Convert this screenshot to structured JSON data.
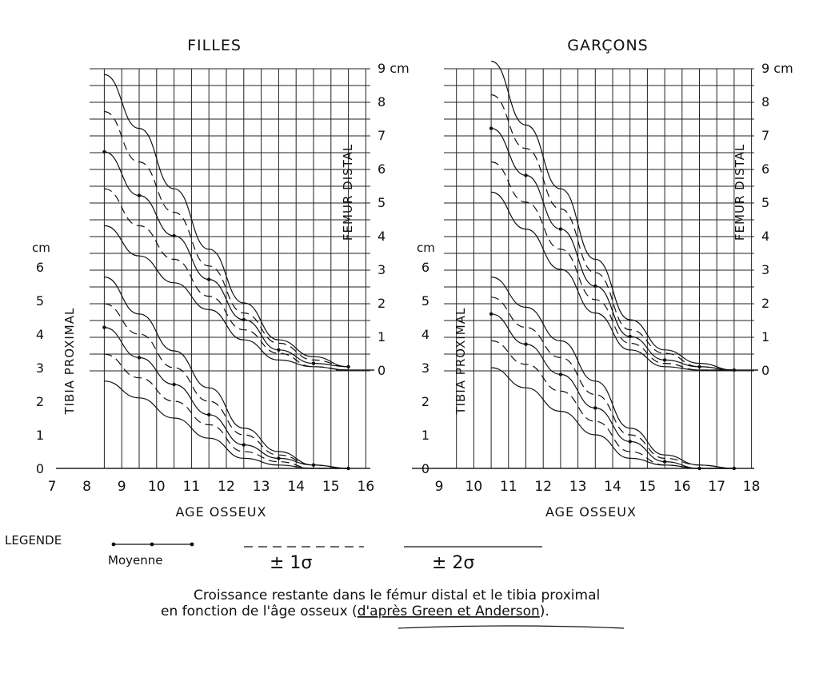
{
  "chart_data": [
    {
      "type": "line",
      "title": "FILLES",
      "xlabel": "AGE OSSEUX",
      "x_ticks": [
        "7",
        "8",
        "9",
        "10",
        "11",
        "12",
        "13",
        "14",
        "15",
        "16"
      ],
      "xlim": [
        7,
        16
      ],
      "femur_axis": {
        "label": "FEMUR DISTAL",
        "unit": "cm",
        "ticks": [
          "0",
          "1",
          "2",
          "3",
          "4",
          "5",
          "6",
          "7",
          "8",
          "9 cm"
        ],
        "ylim": [
          0,
          9
        ]
      },
      "tibia_axis": {
        "label": "TIBIA PROXIMAL",
        "unit": "cm",
        "ticks": [
          "0",
          "1",
          "2",
          "3",
          "4",
          "5",
          "6"
        ],
        "ylim": [
          0,
          6
        ]
      },
      "femur_series": [
        {
          "style": "2sigma",
          "x": [
            8.5,
            9.5,
            10.5,
            11.5,
            12.5,
            13.5,
            14.5,
            15.5
          ],
          "y": [
            8.8,
            7.2,
            5.4,
            3.6,
            2.0,
            0.9,
            0.4,
            0.1
          ]
        },
        {
          "style": "1sigma",
          "x": [
            8.5,
            9.5,
            10.5,
            11.5,
            12.5,
            13.5,
            14.5,
            15.5
          ],
          "y": [
            7.7,
            6.2,
            4.7,
            3.1,
            1.7,
            0.8,
            0.3,
            0.1
          ]
        },
        {
          "style": "mean",
          "x": [
            8.5,
            9.5,
            10.5,
            11.5,
            12.5,
            13.5,
            14.5,
            15.5
          ],
          "y": [
            6.5,
            5.2,
            4.0,
            2.7,
            1.5,
            0.6,
            0.2,
            0.1
          ]
        },
        {
          "style": "1sigma",
          "x": [
            8.5,
            9.5,
            10.5,
            11.5,
            12.5,
            13.5,
            14.5,
            15.5
          ],
          "y": [
            5.4,
            4.3,
            3.3,
            2.2,
            1.2,
            0.5,
            0.1,
            0.0
          ]
        },
        {
          "style": "2sigma",
          "x": [
            8.5,
            9.5,
            10.5,
            11.5,
            12.5,
            13.5,
            14.5,
            15.5
          ],
          "y": [
            4.3,
            3.4,
            2.6,
            1.8,
            0.9,
            0.3,
            0.1,
            0.0
          ]
        }
      ],
      "tibia_series": [
        {
          "style": "2sigma",
          "x": [
            8.5,
            9.5,
            10.5,
            11.5,
            12.5,
            13.5,
            14.5,
            15.5
          ],
          "y": [
            5.7,
            4.6,
            3.5,
            2.4,
            1.2,
            0.5,
            0.1,
            0.0
          ]
        },
        {
          "style": "1sigma",
          "x": [
            8.5,
            9.5,
            10.5,
            11.5,
            12.5,
            13.5,
            14.5,
            15.5
          ],
          "y": [
            4.9,
            4.0,
            3.0,
            2.0,
            1.0,
            0.4,
            0.1,
            0.0
          ]
        },
        {
          "style": "mean",
          "x": [
            8.5,
            9.5,
            10.5,
            11.5,
            12.5,
            13.5,
            14.5,
            15.5
          ],
          "y": [
            4.2,
            3.3,
            2.5,
            1.6,
            0.7,
            0.3,
            0.1,
            0.0
          ]
        },
        {
          "style": "1sigma",
          "x": [
            8.5,
            9.5,
            10.5,
            11.5,
            12.5,
            13.5,
            14.5,
            15.5
          ],
          "y": [
            3.4,
            2.7,
            2.0,
            1.3,
            0.5,
            0.2,
            0.0,
            0.0
          ]
        },
        {
          "style": "2sigma",
          "x": [
            8.5,
            9.5,
            10.5,
            11.5,
            12.5,
            13.5,
            14.5,
            15.5
          ],
          "y": [
            2.6,
            2.1,
            1.5,
            0.9,
            0.3,
            0.1,
            0.0,
            0.0
          ]
        }
      ]
    },
    {
      "type": "line",
      "title": "GARÇONS",
      "xlabel": "AGE OSSEUX",
      "x_ticks": [
        "9",
        "10",
        "11",
        "12",
        "13",
        "14",
        "15",
        "16",
        "17",
        "18"
      ],
      "xlim": [
        9,
        18
      ],
      "femur_axis": {
        "label": "FEMUR DISTAL",
        "unit": "cm",
        "ticks": [
          "0",
          "1",
          "2",
          "3",
          "4",
          "5",
          "6",
          "7",
          "8",
          "9 cm"
        ],
        "ylim": [
          0,
          9
        ]
      },
      "tibia_axis": {
        "label": "TIBIA PROXIMAL",
        "unit": "cm",
        "ticks": [
          "0",
          "1",
          "2",
          "3",
          "4",
          "5",
          "6"
        ],
        "ylim": [
          0,
          6
        ]
      },
      "femur_series": [
        {
          "style": "2sigma",
          "x": [
            10.5,
            11.5,
            12.5,
            13.5,
            14.5,
            15.5,
            16.5,
            17.5
          ],
          "y": [
            9.2,
            7.3,
            5.4,
            3.3,
            1.5,
            0.6,
            0.2,
            0.0
          ]
        },
        {
          "style": "1sigma",
          "x": [
            10.5,
            11.5,
            12.5,
            13.5,
            14.5,
            15.5,
            16.5,
            17.5
          ],
          "y": [
            8.2,
            6.6,
            4.8,
            2.9,
            1.2,
            0.5,
            0.1,
            0.0
          ]
        },
        {
          "style": "mean",
          "x": [
            10.5,
            11.5,
            12.5,
            13.5,
            14.5,
            15.5,
            16.5,
            17.5
          ],
          "y": [
            7.2,
            5.8,
            4.2,
            2.5,
            1.0,
            0.3,
            0.1,
            0.0
          ]
        },
        {
          "style": "1sigma",
          "x": [
            10.5,
            11.5,
            12.5,
            13.5,
            14.5,
            15.5,
            16.5,
            17.5
          ],
          "y": [
            6.2,
            5.0,
            3.6,
            2.1,
            0.8,
            0.2,
            0.0,
            0.0
          ]
        },
        {
          "style": "2sigma",
          "x": [
            10.5,
            11.5,
            12.5,
            13.5,
            14.5,
            15.5,
            16.5,
            17.5
          ],
          "y": [
            5.3,
            4.2,
            3.0,
            1.7,
            0.6,
            0.1,
            0.0,
            0.0
          ]
        }
      ],
      "tibia_series": [
        {
          "style": "2sigma",
          "x": [
            10.5,
            11.5,
            12.5,
            13.5,
            14.5,
            15.5,
            16.5,
            17.5
          ],
          "y": [
            5.7,
            4.8,
            3.8,
            2.6,
            1.2,
            0.4,
            0.1,
            0.0
          ]
        },
        {
          "style": "1sigma",
          "x": [
            10.5,
            11.5,
            12.5,
            13.5,
            14.5,
            15.5,
            16.5,
            17.5
          ],
          "y": [
            5.1,
            4.2,
            3.3,
            2.2,
            1.0,
            0.3,
            0.1,
            0.0
          ]
        },
        {
          "style": "mean",
          "x": [
            10.5,
            11.5,
            12.5,
            13.5,
            14.5,
            15.5,
            16.5,
            17.5
          ],
          "y": [
            4.6,
            3.7,
            2.8,
            1.8,
            0.8,
            0.2,
            0.0,
            0.0
          ]
        },
        {
          "style": "1sigma",
          "x": [
            10.5,
            11.5,
            12.5,
            13.5,
            14.5,
            15.5,
            16.5,
            17.5
          ],
          "y": [
            3.8,
            3.1,
            2.3,
            1.4,
            0.5,
            0.1,
            0.0,
            0.0
          ]
        },
        {
          "style": "2sigma",
          "x": [
            10.5,
            11.5,
            12.5,
            13.5,
            14.5,
            15.5,
            16.5,
            17.5
          ],
          "y": [
            3.0,
            2.4,
            1.7,
            1.0,
            0.3,
            0.1,
            0.0,
            0.0
          ]
        }
      ]
    }
  ],
  "legend": {
    "title": "LEGENDE",
    "mean_label": "Moyenne",
    "sigma1_label": "± 1σ",
    "sigma2_label": "± 2σ"
  },
  "caption": {
    "line1": "Croissance restante dans le fémur distal et le tibia proximal",
    "line2_prefix": "en fonction de l'âge osseux (",
    "line2_ref": "d'après Green et Anderson",
    "line2_suffix": ")."
  }
}
